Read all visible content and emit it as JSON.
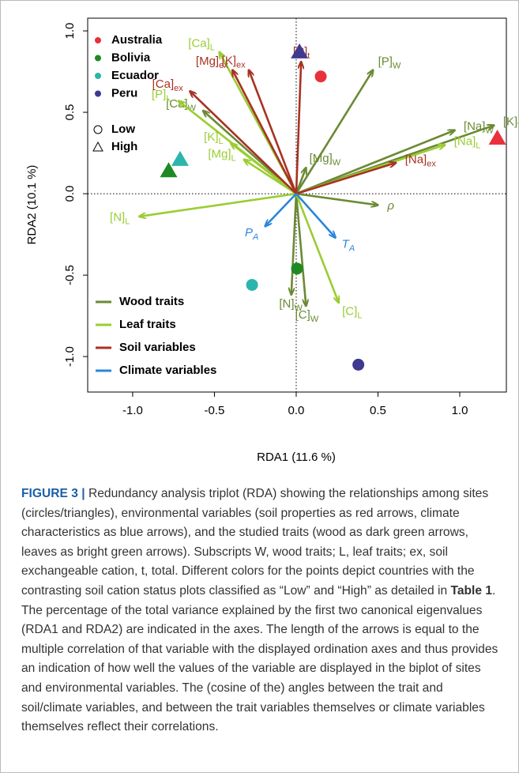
{
  "chart_data": {
    "type": "biplot",
    "xlabel": "RDA1 (11.6 %)",
    "ylabel": "RDA2 (10.1 %)",
    "xlim": [
      -1.275,
      1.285
    ],
    "ylim": [
      -1.218,
      1.078
    ],
    "xticks": [
      {
        "value": -1,
        "label": "-1.0"
      },
      {
        "value": -0.5,
        "label": "-0.5"
      },
      {
        "value": 0,
        "label": "0.0"
      },
      {
        "value": 0.5,
        "label": "0.5"
      },
      {
        "value": 1,
        "label": "1.0"
      }
    ],
    "yticks": [
      {
        "value": -1,
        "label": "-1.0"
      },
      {
        "value": -0.5,
        "label": "-0.5"
      },
      {
        "value": 0,
        "label": "0.0"
      },
      {
        "value": 0.5,
        "label": "0.5"
      },
      {
        "value": 1,
        "label": "1.0"
      }
    ],
    "point_shapes": [
      {
        "name": "Low",
        "marker": "circle"
      },
      {
        "name": "High",
        "marker": "triangle"
      }
    ],
    "series": [
      {
        "name": "Australia",
        "color": "#e8313a",
        "x": [
          0.15,
          1.23
        ],
        "y": [
          0.72,
          0.34
        ]
      },
      {
        "name": "Bolivia",
        "color": "#1f8a24",
        "x": [
          0.005,
          -0.78
        ],
        "y": [
          -0.46,
          0.14
        ]
      },
      {
        "name": "Ecuador",
        "color": "#2bb5ad",
        "x": [
          -0.27,
          -0.71
        ],
        "y": [
          -0.56,
          0.21
        ]
      },
      {
        "name": "Peru",
        "color": "#3f3a8f",
        "x": [
          0.38,
          0.02
        ],
        "y": [
          -1.05,
          0.87
        ]
      }
    ],
    "arrow_groups": [
      {
        "name": "Wood traits",
        "color": "#6b8a34",
        "arrows": [
          {
            "label": "[P]",
            "sub": "W",
            "x": 0.47,
            "y": 0.76
          },
          {
            "label": "[Na]",
            "sub": "W",
            "x": 0.97,
            "y": 0.39
          },
          {
            "label": "[K]",
            "sub": "W",
            "x": 1.21,
            "y": 0.42
          },
          {
            "label": "[Ca]",
            "sub": "W",
            "x": -0.57,
            "y": 0.51
          },
          {
            "label": "[Mg]",
            "sub": "W",
            "x": 0.06,
            "y": 0.16
          },
          {
            "label": "ρ",
            "x": 0.5,
            "y": -0.07
          },
          {
            "label": "[N]",
            "sub": "W",
            "x": -0.03,
            "y": -0.62
          },
          {
            "label": "[C]",
            "sub": "W",
            "x": 0.06,
            "y": -0.69
          }
        ]
      },
      {
        "name": "Leaf traits",
        "color": "#9acd32",
        "arrows": [
          {
            "label": "[Ca]",
            "sub": "L",
            "x": -0.47,
            "y": 0.87
          },
          {
            "label": "[P]",
            "sub": "L",
            "x": -0.72,
            "y": 0.57
          },
          {
            "label": "[K]",
            "sub": "L",
            "x": -0.4,
            "y": 0.31
          },
          {
            "label": "[Mg]",
            "sub": "L",
            "x": -0.32,
            "y": 0.21
          },
          {
            "label": "[N]",
            "sub": "L",
            "x": -0.96,
            "y": -0.14
          },
          {
            "label": "[Na]",
            "sub": "L",
            "x": 0.91,
            "y": 0.3
          },
          {
            "label": "[C]",
            "sub": "L",
            "x": 0.26,
            "y": -0.67
          }
        ]
      },
      {
        "name": "Soil variables",
        "color": "#a83224",
        "arrows": [
          {
            "label": "[Mg]",
            "sub": "ex",
            "x": -0.39,
            "y": 0.76
          },
          {
            "label": "[K]",
            "sub": "ex",
            "x": -0.29,
            "y": 0.76
          },
          {
            "label": "[Ca]",
            "sub": "ex",
            "x": -0.65,
            "y": 0.63
          },
          {
            "label": "[P]",
            "sub": "t",
            "x": 0.03,
            "y": 0.81
          },
          {
            "label": "[Na]",
            "sub": "ex",
            "x": 0.61,
            "y": 0.19
          }
        ]
      },
      {
        "name": "Climate variables",
        "color": "#2a86dc",
        "arrows": [
          {
            "label": "P",
            "sub": "A",
            "x": -0.19,
            "y": -0.2
          },
          {
            "label": "T",
            "sub": "A",
            "x": 0.24,
            "y": -0.27
          }
        ]
      }
    ]
  },
  "caption": {
    "label": "FIGURE 3 |",
    "text_before": " Redundancy analysis triplot (RDA) showing the relationships among sites (circles/triangles), environmental variables (soil properties as red arrows, climate characteristics as blue arrows), and the studied traits (wood as dark green arrows, leaves as bright green arrows). Subscripts W, wood traits; L, leaf traits; ex, soil exchangeable cation, t, total. Different colors for the points depict countries with the contrasting soil cation status plots classified as “Low” and “High” as detailed in ",
    "table_ref": "Table 1",
    "text_after": ". The percentage of the total variance explained by the first two canonical eigenvalues (RDA1 and RDA2) are indicated in the axes. The length of the arrows is equal to the multiple correlation of that variable with the displayed ordination axes and thus provides an indication of how well the values of the variable are displayed in the biplot of sites and environmental variables. The (cosine of the) angles between the trait and soil/climate variables, and between the trait variables themselves or climate variables themselves reflect their correlations."
  }
}
